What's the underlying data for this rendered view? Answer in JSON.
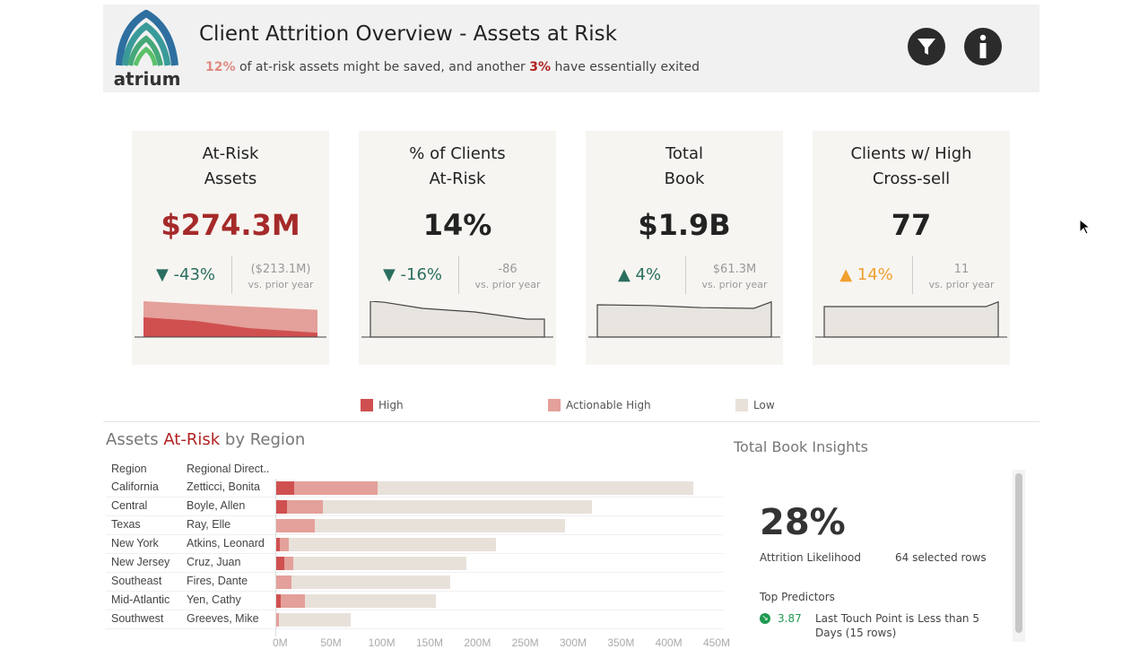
{
  "header": {
    "logo_text": "atrium",
    "title": "Client Attrition Overview - Assets at Risk",
    "subtitle_pct1": "12%",
    "subtitle_mid": " of at-risk assets might be saved, and another ",
    "subtitle_pct2": "3%",
    "subtitle_end": " have essentially exited",
    "filter_icon": "filter-icon",
    "info_icon": "info-icon"
  },
  "cards": [
    {
      "title1": "At-Risk",
      "title2": "Assets",
      "value": "$274.3M",
      "value_color": "#a52a2a",
      "change": "▼ -43%",
      "change_color": "#2a6e5f",
      "prior": "($213.1M)",
      "prior_label": "vs. prior year"
    },
    {
      "title1": "% of Clients",
      "title2": "At-Risk",
      "value": "14%",
      "value_color": "#222222",
      "change": "▼ -16%",
      "change_color": "#2a6e5f",
      "prior": "-86",
      "prior_label": "vs. prior year"
    },
    {
      "title1": "Total",
      "title2": "Book",
      "value": "$1.9B",
      "value_color": "#222222",
      "change": "▲ 4%",
      "change_color": "#2a6e5f",
      "prior": "$61.3M",
      "prior_label": "vs. prior year"
    },
    {
      "title1": "Clients w/ High",
      "title2": "Cross-sell",
      "value": "77",
      "value_color": "#222222",
      "change": "▲ 14%",
      "change_color": "#f0a030",
      "prior": "11",
      "prior_label": "vs. prior year"
    }
  ],
  "legend": [
    {
      "label": "High",
      "color": "#d05050"
    },
    {
      "label": "Actionable High",
      "color": "#e4a09a"
    },
    {
      "label": "Low",
      "color": "#e8e1da"
    }
  ],
  "chart_data": {
    "type": "bar",
    "orientation": "horizontal",
    "stacked": true,
    "title_pre": "Assets ",
    "title_em": "At-Risk",
    "title_post": " by Region",
    "col_region": "Region",
    "col_director": "Regional Direct..",
    "categories": [
      "California",
      "Central",
      "Texas",
      "New York",
      "New Jersey",
      "Southeast",
      "Mid-Atlantic",
      "Southwest"
    ],
    "directors": [
      "Zetticci, Bonita",
      "Boyle, Allen",
      "Ray, Elle",
      "Atkins, Leonard",
      "Cruz, Juan",
      "Fires, Dante",
      "Yen, Cathy",
      "Greeves, Mike"
    ],
    "series": [
      {
        "name": "High",
        "values": [
          20,
          12,
          1,
          5,
          9,
          0,
          6,
          0
        ]
      },
      {
        "name": "Actionable High",
        "values": [
          87,
          38,
          40,
          9,
          10,
          17,
          25,
          4
        ]
      },
      {
        "name": "Low",
        "values": [
          330,
          281,
          262,
          217,
          181,
          166,
          137,
          75
        ]
      }
    ],
    "xlim": [
      0,
      450
    ],
    "ticks": [
      "0M",
      "50M",
      "100M",
      "150M",
      "200M",
      "250M",
      "300M",
      "350M",
      "400M",
      "450M"
    ]
  },
  "insights": {
    "title": "Total Book Insights",
    "value": "28%",
    "label": "Attrition Likelihood",
    "rows": "64 selected rows",
    "predictors_title": "Top Predictors",
    "predictor_score": "3.87",
    "predictor_text": "Last Touch Point is Less than 5 Days (15 rows)"
  }
}
